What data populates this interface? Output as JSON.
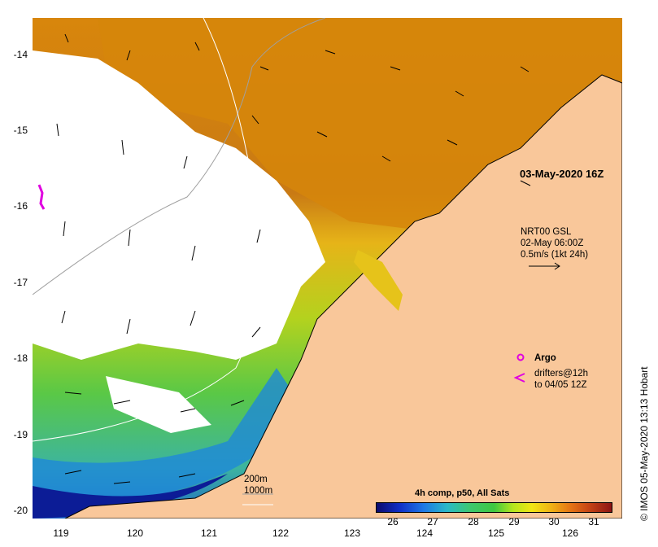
{
  "map": {
    "date_label": "03-May-2020 16Z",
    "current_source": [
      "NRT00 GSL",
      "02-May 06:00Z",
      "0.5m/s (1kt 24h)"
    ],
    "argo_label": "Argo",
    "drifters_label": [
      "drifters@12h",
      "to 04/05 12Z"
    ],
    "depth_contours": [
      "200m",
      "1000m"
    ],
    "credit": "© IMOS 05-May-2020 13:13 Hobart",
    "colorbar_title": "4h comp, p50, All Sats",
    "colorbar_ticks": [
      "26",
      "27",
      "28",
      "29",
      "30",
      "31"
    ],
    "lat_ticks": [
      "-14",
      "-15",
      "-16",
      "-17",
      "-18",
      "-19",
      "-20"
    ],
    "lon_ticks": [
      "119",
      "120",
      "121",
      "122",
      "123",
      "124",
      "125",
      "126"
    ],
    "colors": {
      "land": "#f9c79a",
      "no_data": "#ffffff",
      "warm_sst": "#d6860a",
      "cool_sst": "#2ea8d8",
      "argo": "#e000e0"
    }
  }
}
